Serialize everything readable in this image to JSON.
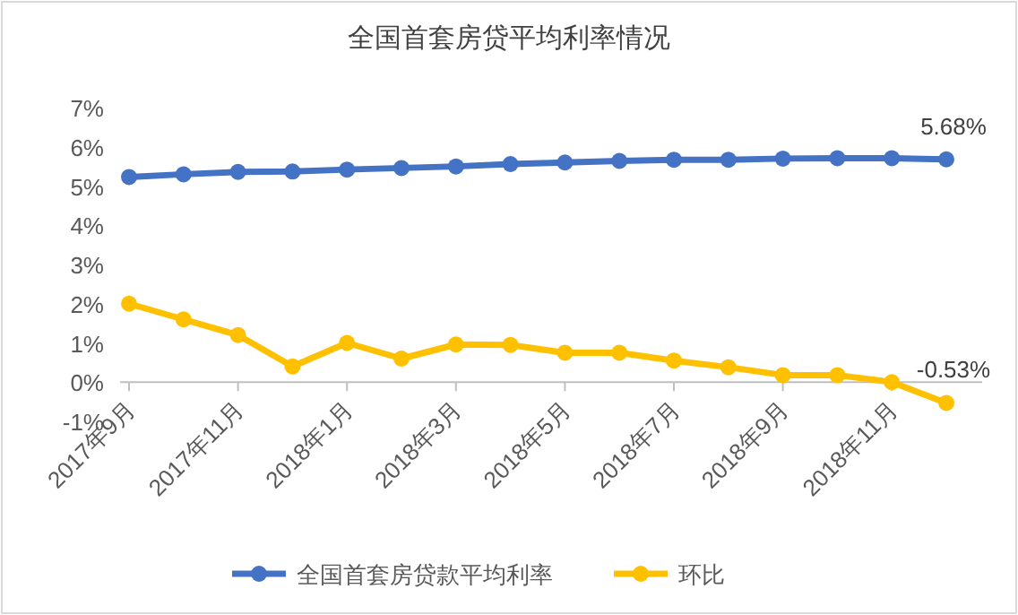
{
  "chart_data": {
    "type": "line",
    "title": "全国首套房贷平均利率情况",
    "categories": [
      "2017年9月",
      null,
      "2017年11月",
      null,
      "2018年1月",
      null,
      "2018年3月",
      null,
      "2018年5月",
      null,
      "2018年7月",
      null,
      "2018年9月",
      null,
      "2018年11月",
      null
    ],
    "series": [
      {
        "name": "全国首套房贷款平均利率",
        "color": "#4472c4",
        "values": [
          5.23,
          5.3,
          5.36,
          5.37,
          5.42,
          5.46,
          5.5,
          5.56,
          5.6,
          5.64,
          5.67,
          5.67,
          5.7,
          5.71,
          5.71,
          5.68
        ],
        "value_labels": [
          null,
          null,
          null,
          null,
          null,
          null,
          null,
          null,
          null,
          null,
          null,
          null,
          null,
          null,
          null,
          "5.68%"
        ]
      },
      {
        "name": "环比",
        "color": "#ffc000",
        "values": [
          2.0,
          1.6,
          1.2,
          0.4,
          1.0,
          0.6,
          0.96,
          0.95,
          0.75,
          0.75,
          0.55,
          0.38,
          0.18,
          0.18,
          0.0,
          -0.53
        ],
        "value_labels": [
          null,
          null,
          null,
          null,
          null,
          null,
          null,
          null,
          null,
          null,
          null,
          null,
          null,
          null,
          null,
          "-0.53%"
        ]
      }
    ],
    "ylim": [
      -1,
      7
    ],
    "yticks": [
      {
        "value": -1,
        "label": "-1%"
      },
      {
        "value": 0,
        "label": "0%"
      },
      {
        "value": 1,
        "label": "1%"
      },
      {
        "value": 2,
        "label": "2%"
      },
      {
        "value": 3,
        "label": "3%"
      },
      {
        "value": 4,
        "label": "4%"
      },
      {
        "value": 5,
        "label": "5%"
      },
      {
        "value": 6,
        "label": "6%"
      },
      {
        "value": 7,
        "label": "7%"
      }
    ],
    "marker": "circle",
    "legend": "bottom",
    "grid": false
  }
}
